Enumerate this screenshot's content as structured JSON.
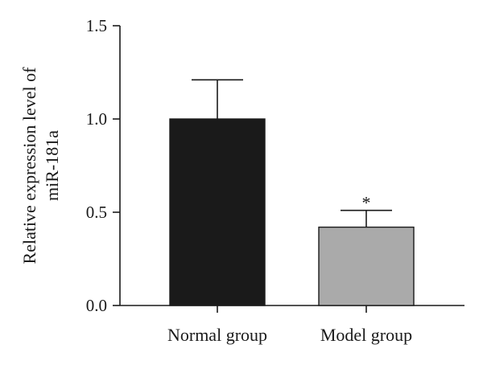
{
  "chart_data": {
    "type": "bar",
    "title": "",
    "xlabel": "",
    "ylabel_lines": [
      "Relative expression level of",
      "miR-181a"
    ],
    "categories": [
      "Normal group",
      "Model group"
    ],
    "series": [
      {
        "values": [
          1.0,
          0.42
        ],
        "errors": [
          0.21,
          0.09
        ],
        "colors": [
          "#1a1a1a",
          "#aaaaaa"
        ],
        "annotations": [
          "",
          "*"
        ]
      }
    ],
    "ylim": [
      0,
      1.5
    ],
    "yticks": [
      0,
      0.5,
      1.0,
      1.5
    ],
    "ytick_labels": [
      "0.0",
      "0.5",
      "1.0",
      "1.5"
    ],
    "grid": false,
    "legend": "none"
  }
}
